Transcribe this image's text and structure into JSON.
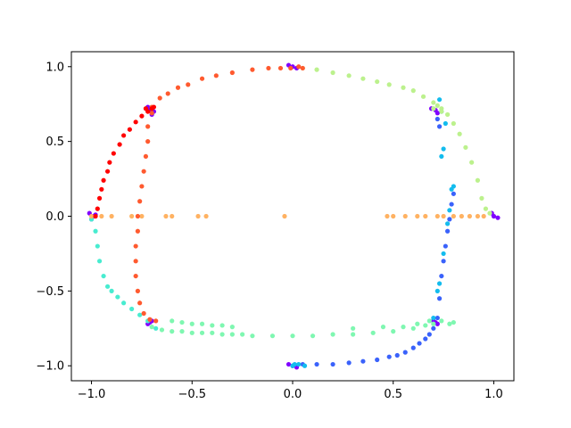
{
  "chart_data": {
    "type": "scatter",
    "title": "",
    "xlabel": "",
    "ylabel": "",
    "xlim": [
      -1.1,
      1.1
    ],
    "ylim": [
      -1.1,
      1.1
    ],
    "xticks": [
      -1.0,
      -0.5,
      0.0,
      0.5,
      1.0
    ],
    "yticks": [
      -1.0,
      -0.5,
      0.0,
      0.5,
      1.0
    ],
    "xtick_labels": [
      "−1.0",
      "−0.5",
      "0.0",
      "0.5",
      "1.0"
    ],
    "ytick_labels": [
      "−1.0",
      "−0.5",
      "0.0",
      "0.5",
      "1.0"
    ],
    "grid": false,
    "colormap": "rainbow",
    "series": [
      {
        "color": "#8000ff",
        "points": [
          [
            -0.99,
            0.0
          ],
          [
            -1.01,
            0.02
          ],
          [
            -1.0,
            -0.02
          ],
          [
            -0.98,
            0.01
          ],
          [
            -0.71,
            0.71
          ],
          [
            -0.69,
            0.7
          ],
          [
            -0.72,
            0.73
          ],
          [
            -0.7,
            0.68
          ],
          [
            0.0,
            1.0
          ],
          [
            0.02,
            0.99
          ],
          [
            -0.02,
            1.01
          ],
          [
            0.71,
            0.71
          ],
          [
            0.69,
            0.72
          ],
          [
            0.72,
            0.69
          ],
          [
            1.0,
            0.0
          ],
          [
            1.02,
            -0.01
          ],
          [
            0.99,
            0.02
          ],
          [
            0.71,
            -0.71
          ],
          [
            0.7,
            -0.7
          ],
          [
            0.72,
            -0.72
          ],
          [
            0.0,
            -1.0
          ],
          [
            -0.02,
            -0.99
          ],
          [
            0.02,
            -1.01
          ],
          [
            -0.71,
            -0.71
          ],
          [
            -0.7,
            -0.7
          ],
          [
            -0.72,
            -0.72
          ]
        ]
      },
      {
        "color": "#3a62fb",
        "points": [
          [
            0.05,
            -0.99
          ],
          [
            0.12,
            -0.99
          ],
          [
            0.2,
            -0.99
          ],
          [
            0.28,
            -0.98
          ],
          [
            0.35,
            -0.97
          ],
          [
            0.42,
            -0.96
          ],
          [
            0.48,
            -0.94
          ],
          [
            0.52,
            -0.93
          ],
          [
            0.56,
            -0.91
          ],
          [
            0.6,
            -0.88
          ],
          [
            0.63,
            -0.85
          ],
          [
            0.66,
            -0.82
          ],
          [
            0.68,
            -0.79
          ],
          [
            0.7,
            -0.75
          ],
          [
            0.72,
            -0.68
          ],
          [
            0.73,
            -0.55
          ],
          [
            0.74,
            -0.4
          ],
          [
            0.75,
            -0.3
          ],
          [
            0.76,
            -0.2
          ],
          [
            0.77,
            -0.1
          ],
          [
            0.78,
            -0.02
          ],
          [
            0.79,
            0.08
          ],
          [
            0.8,
            0.15
          ],
          [
            0.73,
            0.6
          ],
          [
            0.72,
            0.65
          ]
        ]
      },
      {
        "color": "#13bcee",
        "points": [
          [
            0.0,
            -1.0
          ],
          [
            0.01,
            -0.99
          ],
          [
            0.03,
            -0.99
          ],
          [
            0.06,
            -1.0
          ],
          [
            0.7,
            -0.68
          ],
          [
            0.72,
            -0.5
          ],
          [
            0.73,
            -0.45
          ],
          [
            0.75,
            -0.25
          ],
          [
            0.77,
            -0.05
          ],
          [
            0.78,
            0.04
          ],
          [
            0.79,
            0.18
          ],
          [
            0.8,
            0.2
          ],
          [
            0.74,
            0.4
          ],
          [
            0.75,
            0.45
          ],
          [
            0.76,
            0.62
          ],
          [
            0.74,
            0.7
          ],
          [
            0.73,
            0.78
          ]
        ]
      },
      {
        "color": "#48ecd0",
        "points": [
          [
            -1.0,
            -0.02
          ],
          [
            -0.98,
            -0.1
          ],
          [
            -0.97,
            -0.2
          ],
          [
            -0.96,
            -0.3
          ],
          [
            -0.94,
            -0.4
          ],
          [
            -0.92,
            -0.47
          ],
          [
            -0.9,
            -0.5
          ],
          [
            -0.87,
            -0.54
          ],
          [
            -0.84,
            -0.58
          ],
          [
            -0.8,
            -0.62
          ],
          [
            -0.76,
            -0.66
          ],
          [
            -0.72,
            -0.7
          ],
          [
            -0.68,
            -0.75
          ]
        ]
      },
      {
        "color": "#7ff7b1",
        "points": [
          [
            -0.7,
            -0.74
          ],
          [
            -0.65,
            -0.76
          ],
          [
            -0.6,
            -0.77
          ],
          [
            -0.55,
            -0.77
          ],
          [
            -0.5,
            -0.78
          ],
          [
            -0.45,
            -0.78
          ],
          [
            -0.4,
            -0.78
          ],
          [
            -0.35,
            -0.79
          ],
          [
            -0.3,
            -0.79
          ],
          [
            -0.25,
            -0.79
          ],
          [
            -0.2,
            -0.8
          ],
          [
            -0.1,
            -0.8
          ],
          [
            0.0,
            -0.8
          ],
          [
            0.1,
            -0.8
          ],
          [
            0.2,
            -0.79
          ],
          [
            0.3,
            -0.79
          ],
          [
            0.4,
            -0.78
          ],
          [
            0.5,
            -0.77
          ],
          [
            0.6,
            -0.75
          ],
          [
            0.66,
            -0.73
          ],
          [
            0.7,
            -0.72
          ],
          [
            0.74,
            -0.7
          ],
          [
            0.78,
            -0.72
          ],
          [
            0.8,
            -0.71
          ],
          [
            -0.6,
            -0.7
          ],
          [
            -0.55,
            -0.71
          ],
          [
            -0.5,
            -0.72
          ],
          [
            -0.45,
            -0.72
          ],
          [
            -0.4,
            -0.73
          ],
          [
            -0.35,
            -0.73
          ],
          [
            -0.3,
            -0.74
          ],
          [
            0.3,
            -0.75
          ],
          [
            0.45,
            -0.74
          ],
          [
            0.55,
            -0.74
          ],
          [
            0.62,
            -0.72
          ],
          [
            0.68,
            -0.7
          ]
        ]
      },
      {
        "color": "#bcf18d",
        "points": [
          [
            0.05,
            0.99
          ],
          [
            0.12,
            0.98
          ],
          [
            0.2,
            0.96
          ],
          [
            0.28,
            0.94
          ],
          [
            0.35,
            0.92
          ],
          [
            0.42,
            0.9
          ],
          [
            0.48,
            0.88
          ],
          [
            0.55,
            0.86
          ],
          [
            0.6,
            0.84
          ],
          [
            0.65,
            0.8
          ],
          [
            0.7,
            0.76
          ],
          [
            0.74,
            0.72
          ],
          [
            0.77,
            0.68
          ],
          [
            0.8,
            0.62
          ],
          [
            0.83,
            0.55
          ],
          [
            0.86,
            0.46
          ],
          [
            0.89,
            0.36
          ],
          [
            0.92,
            0.24
          ],
          [
            0.94,
            0.12
          ],
          [
            0.96,
            0.05
          ],
          [
            0.98,
            0.02
          ],
          [
            0.74,
            0.7
          ],
          [
            0.72,
            0.74
          ],
          [
            0.7,
            0.72
          ]
        ]
      },
      {
        "color": "#ffb262",
        "points": [
          [
            -1.0,
            0.0
          ],
          [
            -0.95,
            0.0
          ],
          [
            -0.9,
            0.0
          ],
          [
            -0.8,
            0.0
          ],
          [
            -0.75,
            0.0
          ],
          [
            -0.63,
            0.0
          ],
          [
            -0.6,
            0.0
          ],
          [
            -0.47,
            0.0
          ],
          [
            -0.43,
            0.0
          ],
          [
            -0.04,
            0.0
          ],
          [
            0.47,
            0.0
          ],
          [
            0.5,
            0.0
          ],
          [
            0.56,
            0.0
          ],
          [
            0.62,
            0.0
          ],
          [
            0.66,
            0.0
          ],
          [
            0.72,
            0.0
          ],
          [
            0.75,
            0.0
          ],
          [
            0.8,
            0.0
          ],
          [
            0.84,
            0.0
          ],
          [
            0.88,
            0.0
          ],
          [
            0.92,
            0.0
          ],
          [
            0.95,
            0.0
          ]
        ]
      },
      {
        "color": "#ff5a2f",
        "points": [
          [
            -0.01,
            0.99
          ],
          [
            0.03,
            1.0
          ],
          [
            0.05,
            0.99
          ],
          [
            -0.06,
            0.99
          ],
          [
            -0.12,
            0.99
          ],
          [
            -0.2,
            0.98
          ],
          [
            -0.3,
            0.96
          ],
          [
            -0.38,
            0.94
          ],
          [
            -0.45,
            0.92
          ],
          [
            -0.52,
            0.88
          ],
          [
            -0.57,
            0.86
          ],
          [
            -0.62,
            0.82
          ],
          [
            -0.66,
            0.79
          ],
          [
            -0.7,
            0.73
          ],
          [
            -0.7,
            0.69
          ],
          [
            -0.72,
            0.6
          ],
          [
            -0.72,
            0.5
          ],
          [
            -0.73,
            0.4
          ],
          [
            -0.74,
            0.3
          ],
          [
            -0.75,
            0.2
          ],
          [
            -0.76,
            0.1
          ],
          [
            -0.77,
            0.0
          ],
          [
            -0.77,
            -0.1
          ],
          [
            -0.78,
            -0.2
          ],
          [
            -0.78,
            -0.3
          ],
          [
            -0.78,
            -0.4
          ],
          [
            -0.77,
            -0.5
          ],
          [
            -0.76,
            -0.58
          ],
          [
            -0.74,
            -0.65
          ],
          [
            -0.71,
            -0.69
          ],
          [
            -0.68,
            -0.7
          ]
        ]
      },
      {
        "color": "#ff0000",
        "points": [
          [
            -0.98,
            0.0
          ],
          [
            -0.97,
            0.05
          ],
          [
            -0.96,
            0.12
          ],
          [
            -0.95,
            0.18
          ],
          [
            -0.94,
            0.24
          ],
          [
            -0.92,
            0.3
          ],
          [
            -0.91,
            0.36
          ],
          [
            -0.89,
            0.42
          ],
          [
            -0.86,
            0.48
          ],
          [
            -0.84,
            0.54
          ],
          [
            -0.81,
            0.58
          ],
          [
            -0.78,
            0.63
          ],
          [
            -0.75,
            0.67
          ],
          [
            -0.72,
            0.7
          ],
          [
            -0.7,
            0.72
          ],
          [
            -0.69,
            0.73
          ],
          [
            -0.73,
            0.72
          ]
        ]
      }
    ]
  }
}
